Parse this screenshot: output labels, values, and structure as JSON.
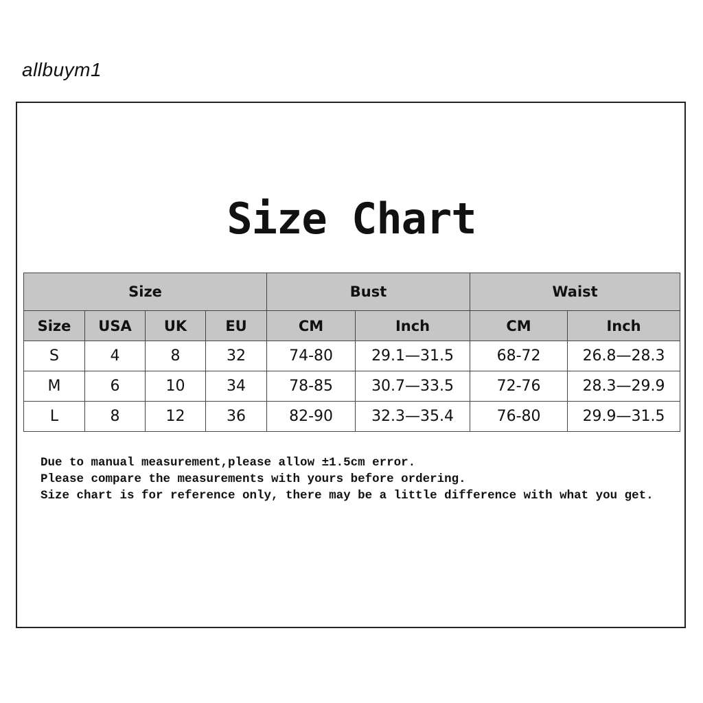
{
  "watermark": "allbuym1",
  "title": "Size Chart",
  "table": {
    "group_headers": [
      "Size",
      "Bust",
      "Waist"
    ],
    "column_headers": [
      "Size",
      "USA",
      "UK",
      "EU",
      "CM",
      "Inch",
      "CM",
      "Inch"
    ],
    "rows": [
      [
        "S",
        "4",
        "8",
        "32",
        "74-80",
        "29.1—31.5",
        "68-72",
        "26.8—28.3"
      ],
      [
        "M",
        "6",
        "10",
        "34",
        "78-85",
        "30.7—33.5",
        "72-76",
        "28.3—29.9"
      ],
      [
        "L",
        "8",
        "12",
        "36",
        "82-90",
        "32.3—35.4",
        "76-80",
        "29.9—31.5"
      ]
    ]
  },
  "notes": [
    "Due to manual measurement,please allow ±1.5cm error.",
    "Please compare the measurements with yours before ordering.",
    "Size chart is for reference only, there may be a little difference with what you get."
  ],
  "colors": {
    "header_bg": "#c6c6c6",
    "border": "#444444"
  }
}
